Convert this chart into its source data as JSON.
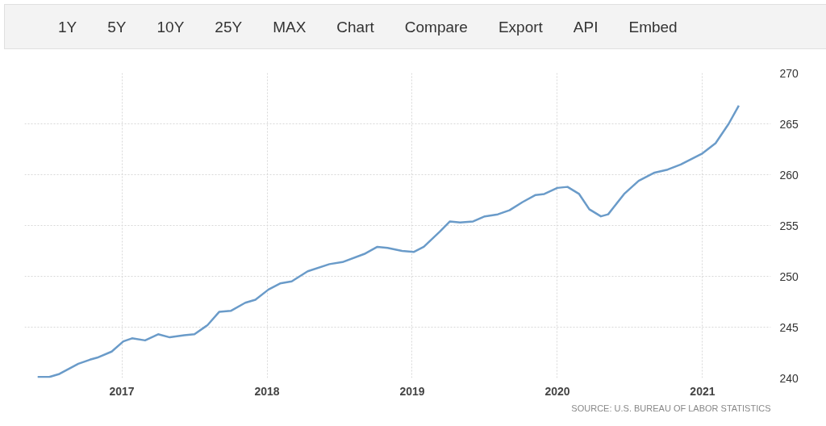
{
  "chart_data": {
    "type": "line",
    "x": [
      2016.42,
      2016.5,
      2016.57,
      2016.7,
      2016.78,
      2016.83,
      2016.93,
      2017.01,
      2017.07,
      2017.16,
      2017.25,
      2017.33,
      2017.43,
      2017.5,
      2017.59,
      2017.67,
      2017.75,
      2017.85,
      2017.92,
      2018.01,
      2018.09,
      2018.17,
      2018.28,
      2018.43,
      2018.52,
      2018.67,
      2018.76,
      2018.83,
      2018.93,
      2019.01,
      2019.08,
      2019.19,
      2019.26,
      2019.33,
      2019.42,
      2019.5,
      2019.59,
      2019.67,
      2019.76,
      2019.85,
      2019.91,
      2020.0,
      2020.07,
      2020.15,
      2020.22,
      2020.3,
      2020.35,
      2020.46,
      2020.56,
      2020.67,
      2020.76,
      2020.85,
      2021.0,
      2021.09,
      2021.18,
      2021.25
    ],
    "series": [
      {
        "color": "#6a9bc9",
        "values": [
          240.1,
          240.1,
          240.4,
          241.4,
          241.8,
          242.0,
          242.6,
          243.6,
          243.9,
          243.7,
          244.3,
          244.0,
          244.2,
          244.3,
          245.2,
          246.5,
          246.6,
          247.4,
          247.7,
          248.7,
          249.3,
          249.5,
          250.5,
          251.2,
          251.4,
          252.2,
          252.9,
          252.8,
          252.5,
          252.4,
          252.9,
          254.4,
          255.4,
          255.3,
          255.4,
          255.9,
          256.1,
          256.5,
          257.3,
          258.0,
          258.1,
          258.7,
          258.8,
          258.1,
          256.6,
          255.9,
          256.1,
          258.1,
          259.4,
          260.2,
          260.5,
          261.0,
          262.1,
          263.1,
          265.0,
          266.8
        ]
      }
    ],
    "xlim": [
      2016.33,
      2021.47
    ],
    "xticks": [
      2017,
      2018,
      2019,
      2020,
      2021
    ],
    "ylim": [
      240,
      270
    ],
    "yticks": [
      240,
      245,
      250,
      255,
      260,
      265,
      270
    ],
    "grid": true,
    "line_style": "solid",
    "marker": "none",
    "annotations": [
      "1Y",
      "5Y",
      "10Y",
      "25Y",
      "MAX",
      "Chart",
      "Compare",
      "Export",
      "API",
      "Embed",
      "SOURCE: U.S. BUREAU OF LABOR STATISTICS"
    ]
  }
}
